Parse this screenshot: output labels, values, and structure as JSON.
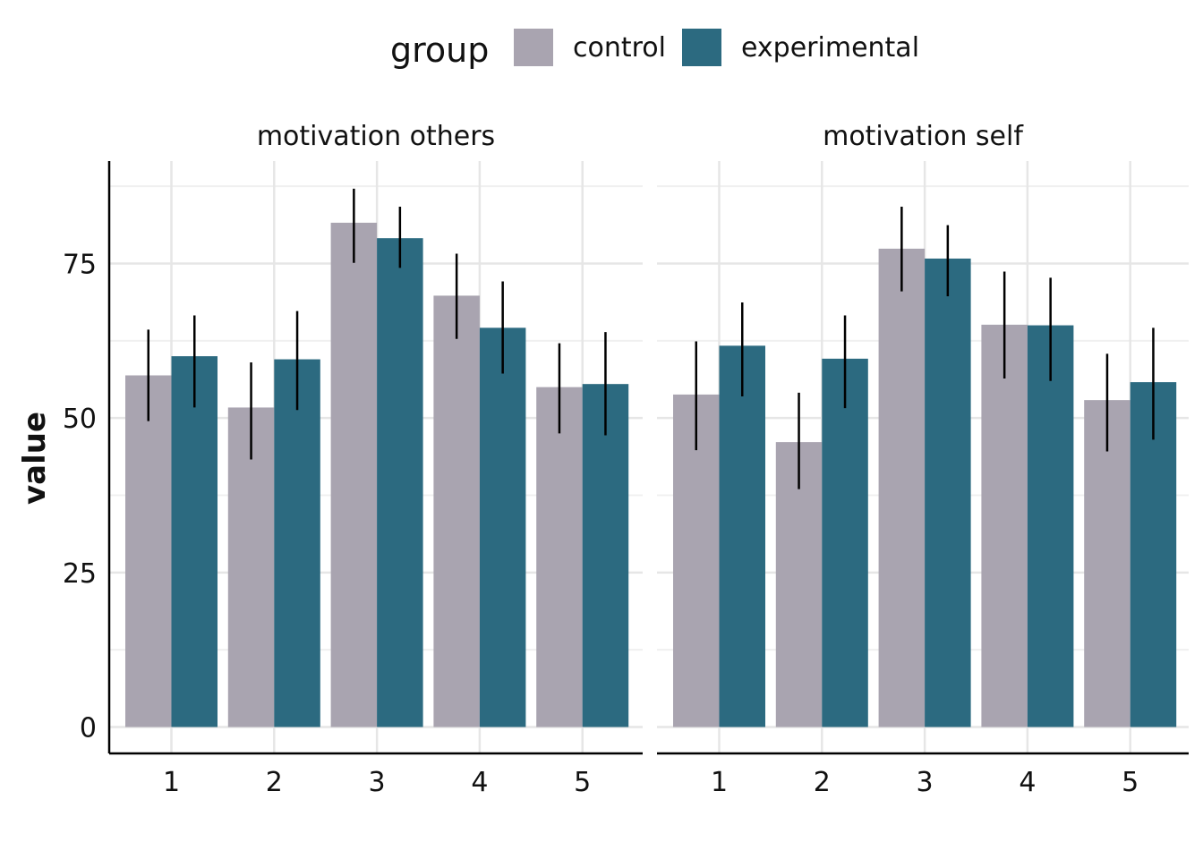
{
  "legend": {
    "title": "group",
    "items": [
      {
        "label": "control",
        "color": "#A9A4B0"
      },
      {
        "label": "experimental",
        "color": "#2C6A80"
      }
    ]
  },
  "chart_data": {
    "type": "bar",
    "ylabel": "value",
    "xlabel": "",
    "ylim": [
      0,
      92
    ],
    "y_ticks": [
      0,
      25,
      50,
      75
    ],
    "categories": [
      "1",
      "2",
      "3",
      "4",
      "5"
    ],
    "grid": true,
    "legend_position": "top",
    "panels": [
      {
        "title": "motivation others",
        "series": [
          {
            "name": "control",
            "values": [
              56.9,
              51.7,
              81.6,
              69.8,
              55.0
            ],
            "error": [
              [
                49.5,
                64.3
              ],
              [
                43.3,
                59.0
              ],
              [
                75.1,
                87.1
              ],
              [
                62.8,
                76.6
              ],
              [
                47.5,
                62.1
              ]
            ]
          },
          {
            "name": "experimental",
            "values": [
              60.0,
              59.5,
              79.1,
              64.6,
              55.5
            ],
            "error": [
              [
                51.7,
                66.6
              ],
              [
                51.3,
                67.3
              ],
              [
                74.3,
                84.2
              ],
              [
                57.2,
                72.1
              ],
              [
                47.2,
                63.9
              ]
            ]
          }
        ]
      },
      {
        "title": "motivation self",
        "series": [
          {
            "name": "control",
            "values": [
              53.8,
              46.1,
              77.4,
              65.1,
              52.9
            ],
            "error": [
              [
                44.8,
                62.4
              ],
              [
                38.5,
                54.1
              ],
              [
                70.5,
                84.2
              ],
              [
                56.4,
                73.7
              ],
              [
                44.6,
                60.4
              ]
            ]
          },
          {
            "name": "experimental",
            "values": [
              61.7,
              59.6,
              75.8,
              65.0,
              55.8
            ],
            "error": [
              [
                53.5,
                68.7
              ],
              [
                51.6,
                66.6
              ],
              [
                69.7,
                81.2
              ],
              [
                56.0,
                72.7
              ],
              [
                46.5,
                64.6
              ]
            ]
          }
        ]
      }
    ]
  }
}
